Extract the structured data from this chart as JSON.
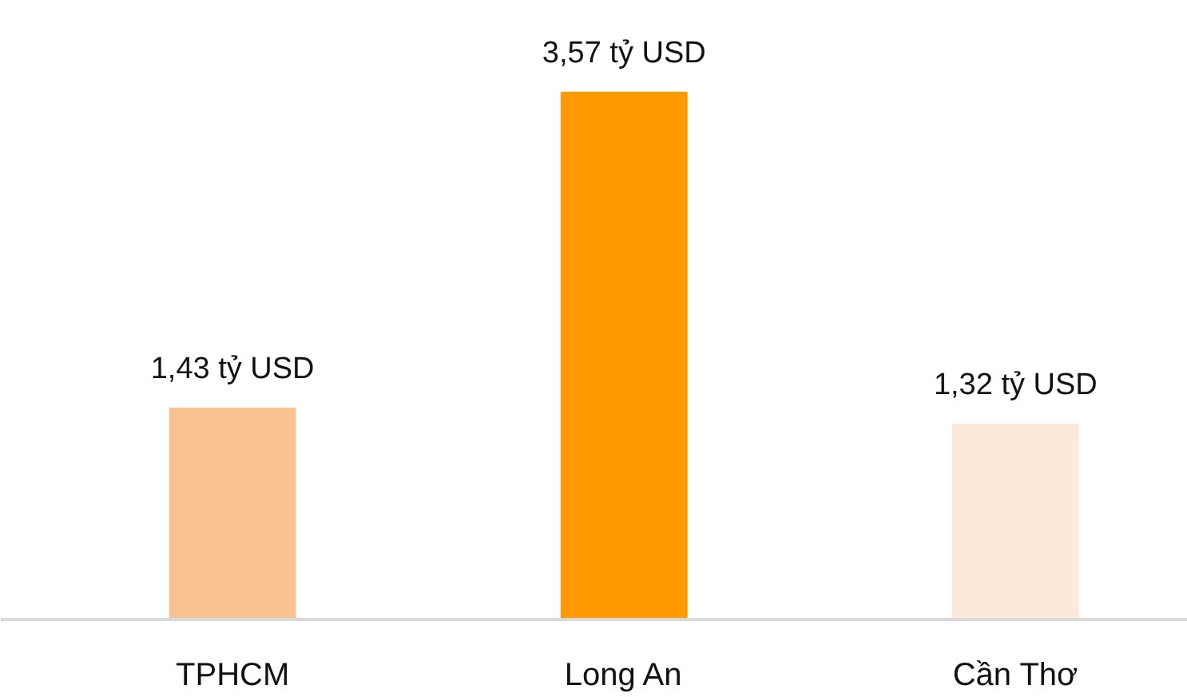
{
  "chart_data": {
    "type": "bar",
    "categories": [
      "TPHCM",
      "Long An",
      "Cần Thơ"
    ],
    "values": [
      1.43,
      3.57,
      1.32
    ],
    "colors": [
      "#f9c291",
      "#ff9900",
      "#fce9da"
    ],
    "value_labels": [
      "1,43 tỷ USD",
      "3,57 tỷ USD",
      "1,32 tỷ USD"
    ]
  }
}
